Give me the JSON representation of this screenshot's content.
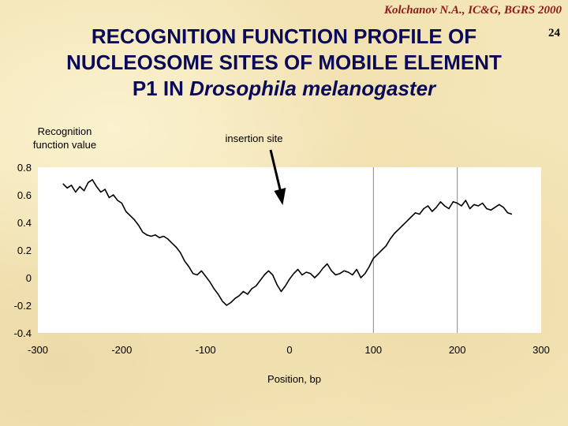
{
  "header": {
    "credit": "Kolchanov N.A., IC&G, BGRS 2000",
    "slide_number": "24",
    "title_line1": "RECOGNITION FUNCTION PROFILE OF",
    "title_line2": "NUCLEOSOME SITES OF MOBILE ELEMENT",
    "title_line3_plain": "P1 IN ",
    "title_line3_italic": "Drosophila melanogaster"
  },
  "colors": {
    "title": "#0a0a5a",
    "credit": "#8b1a1a",
    "plot_background": "#ffffff",
    "line": "#000000",
    "vertical_markers": "#888888",
    "arrow": "#000000"
  },
  "chart_data": {
    "type": "line",
    "title": "",
    "ylabel_line1": "Recognition",
    "ylabel_line2": "function value",
    "xlabel": "Position, bp",
    "annotation": "insertion site",
    "annotation_x": -10,
    "xlim": [
      -300,
      300
    ],
    "ylim": [
      -0.4,
      0.8
    ],
    "xticks": [
      -300,
      -200,
      -100,
      0,
      100,
      200,
      300
    ],
    "xtick_labels": [
      "-300",
      "-200",
      "-100",
      "0",
      "100",
      "200",
      "300"
    ],
    "yticks": [
      0.8,
      0.6,
      0.4,
      0.2,
      0,
      -0.2,
      -0.4
    ],
    "ytick_labels": [
      "0.8",
      "0.6",
      "0.4",
      "0.2",
      "0",
      "-0.2",
      "-0.4"
    ],
    "vertical_markers_x": [
      100,
      200
    ],
    "grid": false,
    "series": [
      {
        "name": "Recognition function value",
        "x": [
          -270,
          -265,
          -260,
          -255,
          -250,
          -245,
          -240,
          -235,
          -230,
          -225,
          -220,
          -215,
          -210,
          -205,
          -200,
          -195,
          -190,
          -185,
          -180,
          -175,
          -170,
          -165,
          -160,
          -155,
          -150,
          -145,
          -140,
          -135,
          -130,
          -125,
          -120,
          -115,
          -110,
          -105,
          -100,
          -95,
          -90,
          -85,
          -80,
          -75,
          -70,
          -65,
          -60,
          -55,
          -50,
          -45,
          -40,
          -35,
          -30,
          -25,
          -20,
          -15,
          -10,
          -5,
          0,
          5,
          10,
          15,
          20,
          25,
          30,
          35,
          40,
          45,
          50,
          55,
          60,
          65,
          70,
          75,
          80,
          85,
          90,
          95,
          100,
          105,
          110,
          115,
          120,
          125,
          130,
          135,
          140,
          145,
          150,
          155,
          160,
          165,
          170,
          175,
          180,
          185,
          190,
          195,
          200,
          205,
          210,
          215,
          220,
          225,
          230,
          235,
          240,
          245,
          250,
          255,
          260,
          265
        ],
        "values": [
          0.68,
          0.65,
          0.67,
          0.62,
          0.66,
          0.63,
          0.69,
          0.71,
          0.66,
          0.62,
          0.64,
          0.58,
          0.6,
          0.56,
          0.54,
          0.48,
          0.45,
          0.42,
          0.38,
          0.33,
          0.31,
          0.3,
          0.31,
          0.29,
          0.3,
          0.28,
          0.25,
          0.22,
          0.18,
          0.12,
          0.08,
          0.03,
          0.02,
          0.05,
          0.01,
          -0.03,
          -0.08,
          -0.12,
          -0.17,
          -0.2,
          -0.18,
          -0.15,
          -0.13,
          -0.1,
          -0.12,
          -0.08,
          -0.06,
          -0.02,
          0.02,
          0.05,
          0.02,
          -0.05,
          -0.1,
          -0.06,
          -0.01,
          0.03,
          0.06,
          0.02,
          0.04,
          0.03,
          0.0,
          0.03,
          0.07,
          0.1,
          0.05,
          0.02,
          0.03,
          0.05,
          0.04,
          0.02,
          0.06,
          0.0,
          0.03,
          0.08,
          0.14,
          0.17,
          0.2,
          0.23,
          0.28,
          0.32,
          0.35,
          0.38,
          0.41,
          0.44,
          0.47,
          0.46,
          0.5,
          0.52,
          0.48,
          0.51,
          0.55,
          0.52,
          0.5,
          0.55,
          0.54,
          0.52,
          0.56,
          0.5,
          0.53,
          0.52,
          0.54,
          0.5,
          0.49,
          0.51,
          0.53,
          0.51,
          0.47,
          0.46
        ]
      }
    ]
  }
}
